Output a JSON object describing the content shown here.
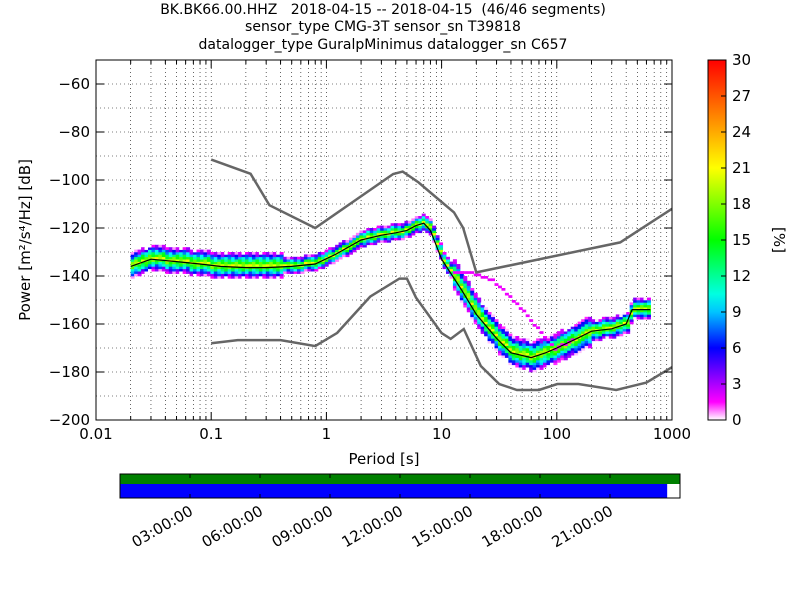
{
  "header": {
    "line1": "BK.BK66.00.HHZ   2018-04-15 -- 2018-04-15  (46/46 segments)",
    "line2": "sensor_type CMG-3T sensor_sn T39818",
    "line3": "datalogger_type GuralpMinimus datalogger_sn C657"
  },
  "chart_data": [
    {
      "type": "heatmap",
      "xlabel": "Period [s]",
      "ylabel": "Power [m²/s⁴/Hz] [dB]",
      "xscale": "log",
      "xlim": [
        0.01,
        1000
      ],
      "ylim": [
        -200,
        -50
      ],
      "x_ticks": [
        "0.01",
        "0.1",
        "1",
        "10",
        "100",
        "1000"
      ],
      "y_ticks": [
        "−200",
        "−180",
        "−160",
        "−140",
        "−120",
        "−100",
        "−80",
        "−60"
      ],
      "grid": true,
      "colorbar": {
        "label": "[%]",
        "range": [
          0,
          30
        ],
        "ticks": [
          "0",
          "3",
          "6",
          "9",
          "12",
          "15",
          "18",
          "21",
          "24",
          "27",
          "30"
        ],
        "colormap": "pqlx"
      },
      "nhnm": [
        [
          0.1,
          -91.5
        ],
        [
          0.22,
          -97.4
        ],
        [
          0.32,
          -110.5
        ],
        [
          0.8,
          -120
        ],
        [
          3.8,
          -97.5
        ],
        [
          4.6,
          -96.5
        ],
        [
          6.3,
          -101
        ],
        [
          7.9,
          -105
        ],
        [
          12.8,
          -113.5
        ],
        [
          15.4,
          -120
        ],
        [
          20,
          -138.5
        ],
        [
          354.8,
          -126
        ],
        [
          1000,
          -112
        ]
      ],
      "nlnm": [
        [
          0.1,
          -168
        ],
        [
          0.17,
          -166.7
        ],
        [
          0.4,
          -166.7
        ],
        [
          0.8,
          -169.2
        ],
        [
          1.24,
          -163.7
        ],
        [
          2.4,
          -148.6
        ],
        [
          4.3,
          -141.1
        ],
        [
          5,
          -141.1
        ],
        [
          6,
          -149
        ],
        [
          10,
          -163.8
        ],
        [
          12,
          -166.2
        ],
        [
          15.6,
          -162.1
        ],
        [
          21.9,
          -177.5
        ],
        [
          31.6,
          -185
        ],
        [
          45,
          -187.5
        ],
        [
          70,
          -187.5
        ],
        [
          101,
          -185
        ],
        [
          154,
          -185
        ],
        [
          328,
          -187.5
        ],
        [
          600,
          -184.4
        ],
        [
          1000,
          -178
        ]
      ],
      "mode": [
        [
          0.02,
          -136
        ],
        [
          0.03,
          -133
        ],
        [
          0.05,
          -134
        ],
        [
          0.08,
          -135
        ],
        [
          0.12,
          -136
        ],
        [
          0.2,
          -136.5
        ],
        [
          0.3,
          -136.5
        ],
        [
          0.5,
          -136
        ],
        [
          0.8,
          -135
        ],
        [
          1.2,
          -131
        ],
        [
          2,
          -125
        ],
        [
          3,
          -123
        ],
        [
          4,
          -122
        ],
        [
          5,
          -121
        ],
        [
          6,
          -119
        ],
        [
          7,
          -118
        ],
        [
          8,
          -121
        ],
        [
          10,
          -133
        ],
        [
          15,
          -146
        ],
        [
          20,
          -156
        ],
        [
          30,
          -166
        ],
        [
          40,
          -172
        ],
        [
          60,
          -174
        ],
        [
          80,
          -172
        ],
        [
          100,
          -170
        ],
        [
          150,
          -166
        ],
        [
          200,
          -163
        ],
        [
          300,
          -162
        ],
        [
          400,
          -160
        ],
        [
          450,
          -154
        ],
        [
          500,
          -154
        ],
        [
          650,
          -154
        ]
      ]
    },
    {
      "type": "timeline",
      "tick_labels": [
        "03:00:00",
        "06:00:00",
        "09:00:00",
        "12:00:00",
        "15:00:00",
        "18:00:00",
        "21:00:00"
      ],
      "tick_hours": [
        3,
        6,
        9,
        12,
        15,
        18,
        21
      ],
      "range_hours": [
        0,
        24
      ],
      "coverage_end_hours": 23.45,
      "colors": {
        "coverage": "#008000",
        "segments": "#0000ff"
      }
    }
  ]
}
